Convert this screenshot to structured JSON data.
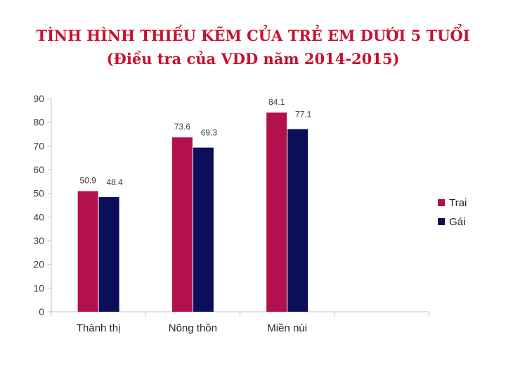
{
  "chart_data": {
    "type": "bar",
    "title": "TÌNH HÌNH THIẾU KẼM CỦA TRẺ EM DƯỚI 5 TUỔI",
    "subtitle": "(Điều tra của VDD năm 2014-2015)",
    "categories": [
      "Thành thị",
      "Nông thôn",
      "Miền núi"
    ],
    "series": [
      {
        "name": "Trai",
        "values": [
          50.9,
          73.6,
          84.1
        ]
      },
      {
        "name": "Gái",
        "values": [
          48.4,
          69.3,
          77.1
        ]
      }
    ],
    "data_labels": [
      [
        "50.9",
        "73.6",
        "84.1"
      ],
      [
        "48.4",
        "69.3",
        "77.1"
      ]
    ],
    "y_ticks": [
      "0",
      "10",
      "20",
      "30",
      "40",
      "50",
      "60",
      "70",
      "80",
      "90"
    ],
    "ylim": [
      0,
      90
    ],
    "grid": false,
    "legend_position": "right",
    "colors": {
      "Trai": "#b5104e",
      "Gái": "#0b0f5a",
      "title": "#c8102e",
      "axis": "#bfbfbf",
      "text": "#404040"
    }
  }
}
